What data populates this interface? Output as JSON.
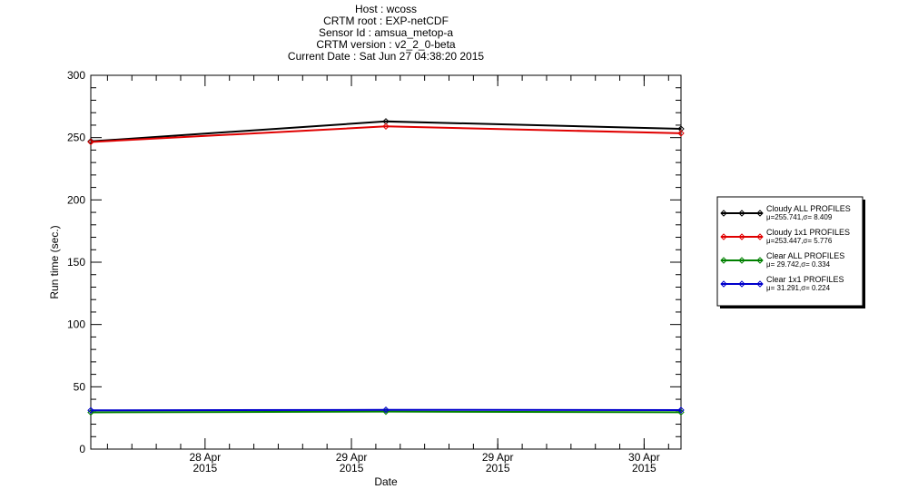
{
  "header": {
    "lines": [
      "Host : wcoss",
      "CRTM root : EXP-netCDF",
      "Sensor Id : amsua_metop-a",
      "CRTM version : v2_2_0-beta",
      "Current Date : Sat Jun 27 04:38:20 2015"
    ]
  },
  "chart_data": {
    "type": "line",
    "xlabel": "Date",
    "ylabel": "Run time (sec.)",
    "ylim": [
      0,
      300
    ],
    "xlim": [
      0,
      1
    ],
    "y_ticks": [
      0,
      50,
      100,
      150,
      200,
      250,
      300
    ],
    "x_ticks": [
      {
        "x": 0.1936,
        "line1": "28 Apr",
        "line2": "2015"
      },
      {
        "x": 0.4416,
        "line1": "29 Apr",
        "line2": "2015"
      },
      {
        "x": 0.6895,
        "line1": "29 Apr",
        "line2": "2015"
      },
      {
        "x": 0.9375,
        "line1": "30 Apr",
        "line2": "2015"
      }
    ],
    "series": [
      {
        "name": "Cloudy ALL PROFILES",
        "stats": "μ=255.741,σ= 8.409",
        "color": "#000000",
        "x": [
          0,
          0.5,
          1
        ],
        "values": [
          247,
          263,
          257
        ]
      },
      {
        "name": "Cloudy 1x1 PROFILES",
        "stats": "μ=253.447,σ= 5.776",
        "color": "#e00000",
        "x": [
          0,
          0.5,
          1
        ],
        "values": [
          246.5,
          259,
          253.5
        ]
      },
      {
        "name": "Clear ALL PROFILES",
        "stats": "μ= 29.742,σ= 0.334",
        "color": "#008000",
        "x": [
          0,
          0.5,
          1
        ],
        "values": [
          29.5,
          30.1,
          29.6
        ]
      },
      {
        "name": "Clear 1x1 PROFILES",
        "stats": "μ= 31.291,σ= 0.224",
        "color": "#0000cc",
        "x": [
          0,
          0.5,
          1
        ],
        "values": [
          31.1,
          31.5,
          31.3
        ]
      }
    ],
    "legend_position": "right"
  }
}
